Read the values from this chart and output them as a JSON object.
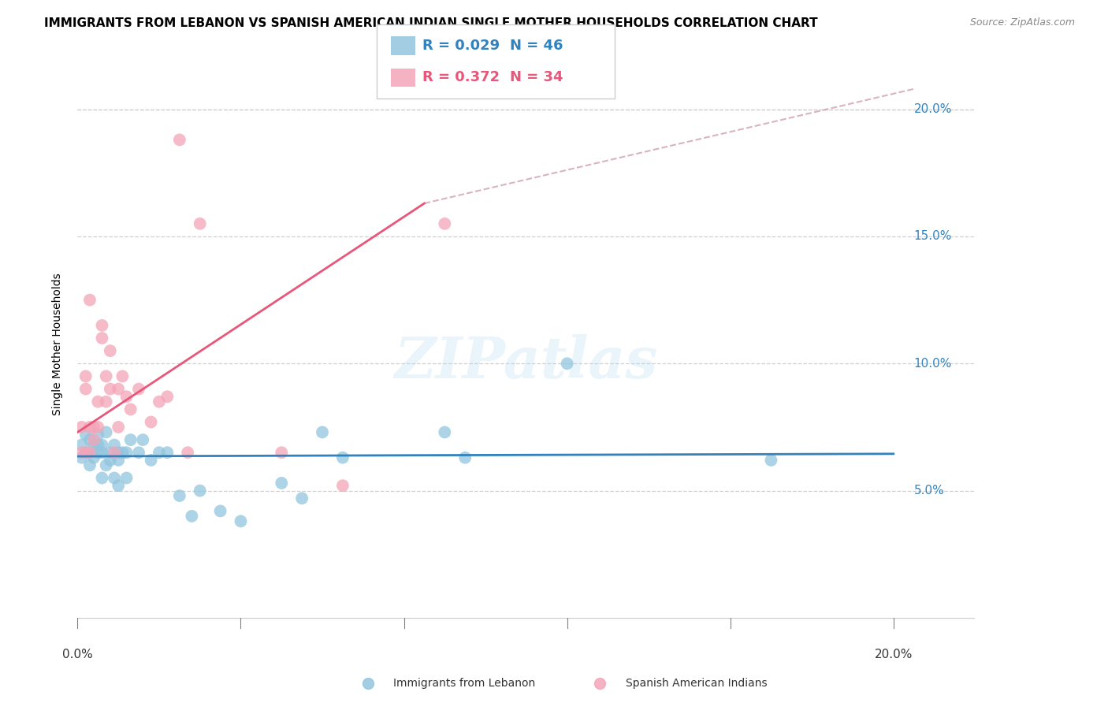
{
  "title": "IMMIGRANTS FROM LEBANON VS SPANISH AMERICAN INDIAN SINGLE MOTHER HOUSEHOLDS CORRELATION CHART",
  "source": "Source: ZipAtlas.com",
  "ylabel": "Single Mother Households",
  "xlim": [
    0.0,
    0.22
  ],
  "ylim": [
    -0.01,
    0.225
  ],
  "yticks": [
    0.05,
    0.1,
    0.15,
    0.2
  ],
  "ytick_labels": [
    "5.0%",
    "10.0%",
    "15.0%",
    "20.0%"
  ],
  "xticks": [
    0.0,
    0.04,
    0.08,
    0.12,
    0.16,
    0.2
  ],
  "blue_color": "#92c5de",
  "pink_color": "#f4a5b8",
  "blue_line_color": "#3182bd",
  "pink_line_color": "#e8567a",
  "grid_color": "#d0d0d0",
  "watermark_text": "ZIPatlas",
  "background_color": "#ffffff",
  "blue_scatter_x": [
    0.001,
    0.001,
    0.002,
    0.002,
    0.003,
    0.003,
    0.003,
    0.004,
    0.004,
    0.005,
    0.005,
    0.005,
    0.006,
    0.006,
    0.006,
    0.007,
    0.007,
    0.008,
    0.008,
    0.009,
    0.009,
    0.01,
    0.01,
    0.01,
    0.011,
    0.012,
    0.012,
    0.013,
    0.015,
    0.016,
    0.018,
    0.02,
    0.022,
    0.025,
    0.028,
    0.03,
    0.035,
    0.04,
    0.05,
    0.055,
    0.06,
    0.065,
    0.09,
    0.095,
    0.12,
    0.17
  ],
  "blue_scatter_y": [
    0.063,
    0.068,
    0.072,
    0.065,
    0.07,
    0.065,
    0.06,
    0.068,
    0.063,
    0.072,
    0.068,
    0.065,
    0.068,
    0.065,
    0.055,
    0.073,
    0.06,
    0.065,
    0.062,
    0.068,
    0.055,
    0.065,
    0.062,
    0.052,
    0.065,
    0.065,
    0.055,
    0.07,
    0.065,
    0.07,
    0.062,
    0.065,
    0.065,
    0.048,
    0.04,
    0.05,
    0.042,
    0.038,
    0.053,
    0.047,
    0.073,
    0.063,
    0.073,
    0.063,
    0.1,
    0.062
  ],
  "pink_scatter_x": [
    0.001,
    0.001,
    0.002,
    0.002,
    0.002,
    0.003,
    0.003,
    0.003,
    0.004,
    0.004,
    0.005,
    0.005,
    0.006,
    0.006,
    0.007,
    0.007,
    0.008,
    0.008,
    0.009,
    0.01,
    0.01,
    0.011,
    0.012,
    0.013,
    0.015,
    0.018,
    0.02,
    0.022,
    0.025,
    0.027,
    0.03,
    0.05,
    0.065,
    0.09
  ],
  "pink_scatter_y": [
    0.075,
    0.065,
    0.065,
    0.09,
    0.095,
    0.075,
    0.065,
    0.125,
    0.075,
    0.07,
    0.085,
    0.075,
    0.11,
    0.115,
    0.095,
    0.085,
    0.105,
    0.09,
    0.065,
    0.075,
    0.09,
    0.095,
    0.087,
    0.082,
    0.09,
    0.077,
    0.085,
    0.087,
    0.188,
    0.065,
    0.155,
    0.065,
    0.052,
    0.155
  ],
  "blue_line_x": [
    0.0,
    0.2
  ],
  "blue_line_y": [
    0.0635,
    0.0645
  ],
  "pink_line_x": [
    0.0,
    0.085
  ],
  "pink_line_y": [
    0.073,
    0.163
  ],
  "dashed_line_x": [
    0.085,
    0.205
  ],
  "dashed_line_y": [
    0.163,
    0.208
  ],
  "title_fontsize": 11,
  "source_fontsize": 9,
  "axis_label_fontsize": 10,
  "tick_fontsize": 11,
  "legend_fontsize": 13
}
